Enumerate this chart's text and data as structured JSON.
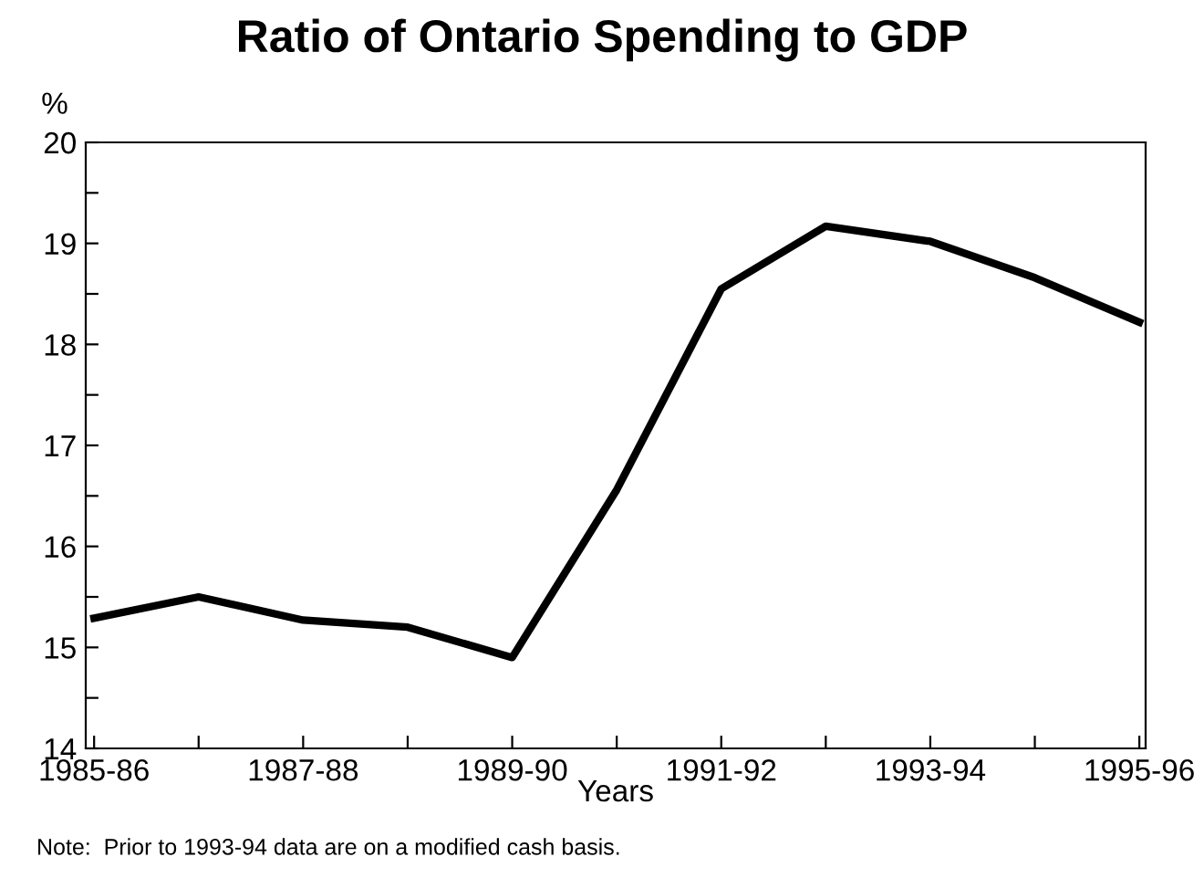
{
  "chart_data": {
    "type": "line",
    "title": "Ratio of Ontario Spending to GDP",
    "ylabel": "%",
    "xlabel": "Years",
    "categories": [
      "1985-86",
      null,
      "1987-88",
      null,
      "1989-90",
      null,
      "1991-92",
      null,
      "1993-94",
      null,
      "1995-96"
    ],
    "series": [
      {
        "color": "#000000",
        "values": [
          15.29,
          15.5,
          15.27,
          15.2,
          14.9,
          16.56,
          18.55,
          19.17,
          19.02,
          18.66,
          18.22
        ]
      }
    ],
    "ylim": [
      14,
      20
    ],
    "yticks": [
      14,
      {
        "value": 14.5,
        "label": null
      },
      15,
      {
        "value": 15.5,
        "label": null
      },
      16,
      {
        "value": 16.5,
        "label": null
      },
      17,
      {
        "value": 17.5,
        "label": null
      },
      18,
      {
        "value": 18.5,
        "label": null
      },
      19,
      {
        "value": 19.5,
        "label": null
      },
      20
    ],
    "grid": false,
    "legend": false,
    "marker": "none",
    "line_style": "solid",
    "annotations": [
      "Note:  Prior to 1993-94 data are on a modified cash basis."
    ]
  }
}
